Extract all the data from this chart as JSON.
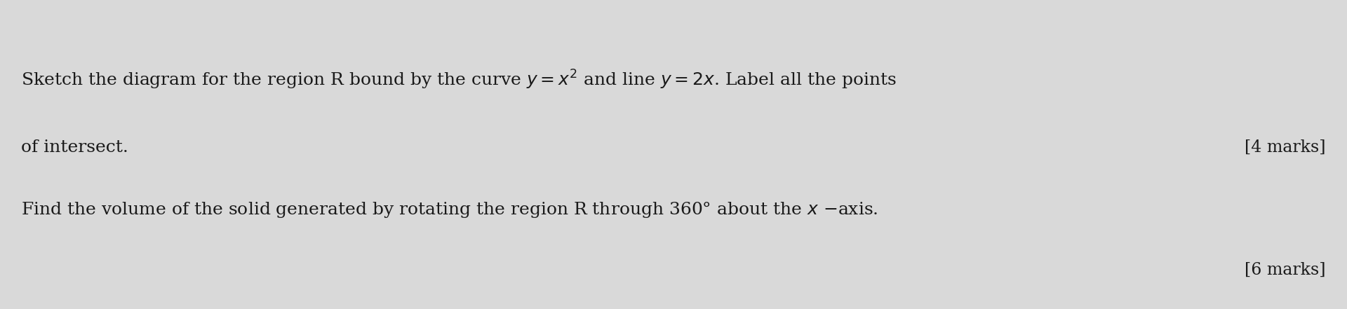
{
  "background_color": "#d9d9d9",
  "line1": "Sketch the diagram for the region R bound by the curve $y = x^2$ and line $y = 2x$. Label all the points",
  "line2": "of intersect.",
  "line3_right": "[4 marks]",
  "line4": "Find the volume of the solid generated by rotating the region R through 360° about the $x$ −axis.",
  "line5_right": "[6 marks]",
  "font_size_main": 18,
  "font_size_marks": 17,
  "text_color": "#1a1a1a",
  "fig_width": 19.2,
  "fig_height": 4.41
}
